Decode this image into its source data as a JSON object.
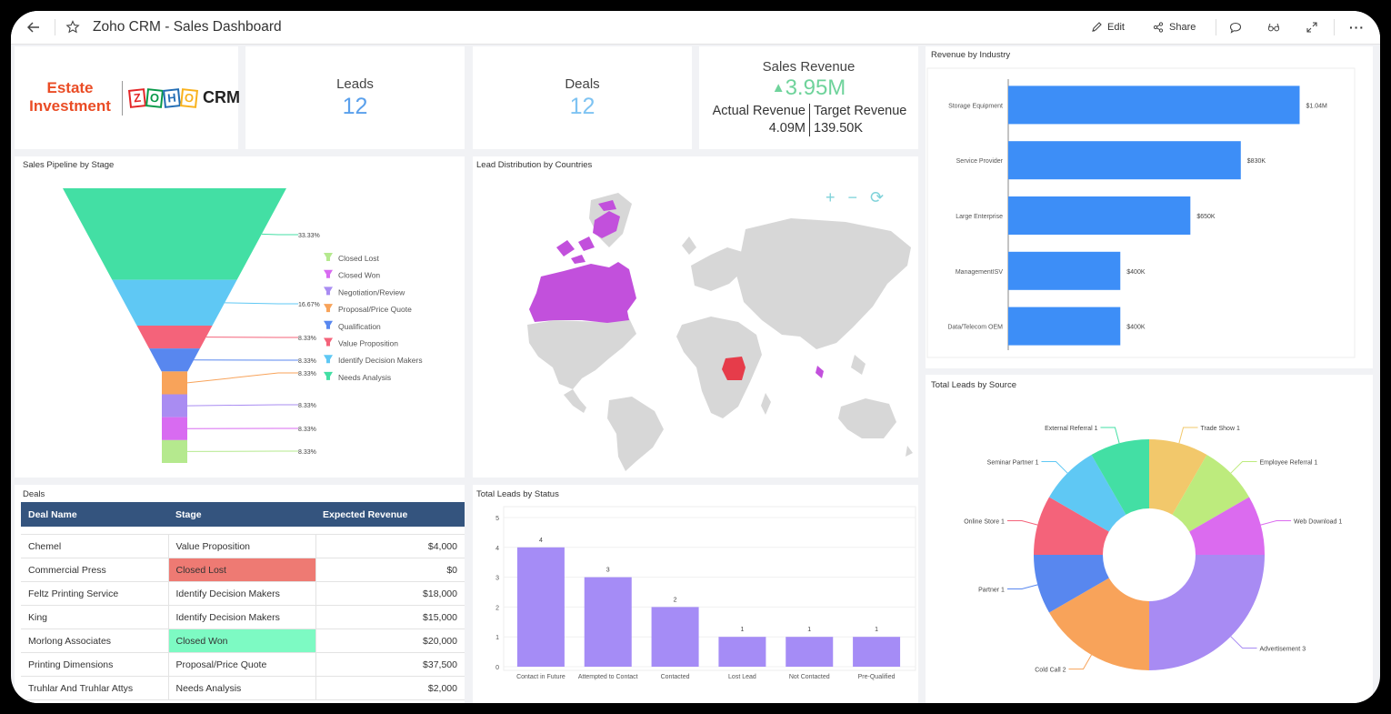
{
  "topbar": {
    "title": "Zoho CRM - Sales Dashboard",
    "edit_label": "Edit",
    "share_label": "Share",
    "more_label": "···"
  },
  "brand": {
    "line1": "Estate",
    "line2": "Investment",
    "logo_letters": [
      "Z",
      "O",
      "H",
      "O"
    ],
    "logo_colors": [
      "#e42527",
      "#089949",
      "#226db4",
      "#f9b21d"
    ],
    "crm_text": "CRM"
  },
  "kpis": {
    "leads_label": "Leads",
    "leads_value": "12",
    "deals_label": "Deals",
    "deals_value": "12",
    "revenue_label": "Sales Revenue",
    "revenue_arrow": "▲",
    "revenue_value": "3.95M",
    "actual_label": "Actual Revenue",
    "actual_value": "4.09M",
    "target_label": "Target Revenue",
    "target_value": "139.50K"
  },
  "colors": {
    "accent": "#64b5f6",
    "positive": "#4caf84",
    "bar_blue": "#3d8ef7",
    "bar_purple": "#a58cf6",
    "table_header": "#34547e",
    "closed_lost": "#ee7a73",
    "closed_won": "#7dfac3",
    "map_purple": "#c250dc",
    "map_red": "#e63c4a",
    "map_grey": "#d7d7d7"
  },
  "panels": {
    "pipeline_title": "Sales Pipeline by Stage",
    "map_title": "Lead Distribution by Countries",
    "industry_title": "Revenue by Industry",
    "deals_title": "Deals",
    "status_title": "Total Leads by Status",
    "source_title": "Total Leads by Source"
  },
  "map_controls": [
    "+",
    "−",
    "⟳"
  ],
  "funnel": {
    "legend": [
      {
        "label": "Closed Lost",
        "color": "#b5e98e"
      },
      {
        "label": "Closed Won",
        "color": "#d86bf1"
      },
      {
        "label": "Negotiation/Review",
        "color": "#a98cf2"
      },
      {
        "label": "Proposal/Price Quote",
        "color": "#f8a35a"
      },
      {
        "label": "Qualification",
        "color": "#5887ef"
      },
      {
        "label": "Value Proposition",
        "color": "#f4637a"
      },
      {
        "label": "Identify Decision Makers",
        "color": "#5fc8f4"
      },
      {
        "label": "Needs Analysis",
        "color": "#43dfa4"
      }
    ],
    "segments": [
      {
        "stage": "Needs Analysis",
        "pct": "33.33%",
        "share": 4,
        "color": "#43dfa4"
      },
      {
        "stage": "Identify Decision Makers",
        "pct": "16.67%",
        "share": 2,
        "color": "#5fc8f4"
      },
      {
        "stage": "Value Proposition",
        "pct": "8.33%",
        "share": 1,
        "color": "#f4637a"
      },
      {
        "stage": "Qualification",
        "pct": "8.33%",
        "share": 1,
        "color": "#5887ef"
      },
      {
        "stage": "Proposal/Price Quote",
        "pct": "8.33%",
        "share": 1,
        "color": "#f8a35a"
      },
      {
        "stage": "Negotiation/Review",
        "pct": "8.33%",
        "share": 1,
        "color": "#a98cf2"
      },
      {
        "stage": "Closed Won",
        "pct": "8.33%",
        "share": 1,
        "color": "#d86bf1"
      },
      {
        "stage": "Closed Lost",
        "pct": "8.33%",
        "share": 1,
        "color": "#b5e98e"
      }
    ]
  },
  "deals_table": {
    "headers": [
      "Deal Name",
      "Stage",
      "Expected Revenue"
    ],
    "rows": [
      {
        "name": "Chemel",
        "stage": "Value Proposition",
        "revenue": "$4,000",
        "highlight": ""
      },
      {
        "name": "Commercial Press",
        "stage": "Closed Lost",
        "revenue": "$0",
        "highlight": "#ee7a73"
      },
      {
        "name": "Feltz Printing Service",
        "stage": "Identify Decision Makers",
        "revenue": "$18,000",
        "highlight": ""
      },
      {
        "name": "King",
        "stage": "Identify Decision Makers",
        "revenue": "$15,000",
        "highlight": ""
      },
      {
        "name": "Morlong Associates",
        "stage": "Closed Won",
        "revenue": "$20,000",
        "highlight": "#7dfac3"
      },
      {
        "name": "Printing Dimensions",
        "stage": "Proposal/Price Quote",
        "revenue": "$37,500",
        "highlight": ""
      },
      {
        "name": "Truhlar And Truhlar Attys",
        "stage": "Needs Analysis",
        "revenue": "$2,000",
        "highlight": ""
      }
    ]
  },
  "chart_data": [
    {
      "type": "bar",
      "orientation": "horizontal",
      "title": "Revenue by Industry",
      "categories": [
        "Storage Equipment",
        "Service Provider",
        "Large Enterprise",
        "ManagementISV",
        "Data/Telecom OEM"
      ],
      "values": [
        1040000,
        830000,
        650000,
        400000,
        400000
      ],
      "data_labels": [
        "$1.04M",
        "$830K",
        "$650K",
        "$400K",
        "$400K"
      ],
      "xlim": [
        0,
        1100000
      ],
      "grid": false
    },
    {
      "type": "bar",
      "title": "Total Leads by Status",
      "categories": [
        "Contact in Future",
        "Attempted to Contact",
        "Contacted",
        "Lost Lead",
        "Not Contacted",
        "Pre-Qualified"
      ],
      "values": [
        4,
        3,
        2,
        1,
        1,
        1
      ],
      "ylim": [
        0,
        5
      ],
      "yticks": [
        "0",
        "1",
        "2",
        "3",
        "4",
        "5"
      ],
      "grid": true
    },
    {
      "type": "pie",
      "title": "Total Leads by Source",
      "donut": true,
      "slices": [
        {
          "label": "Trade Show 1",
          "value": 1,
          "color": "#f2c86b"
        },
        {
          "label": "Employee Referral 1",
          "value": 1,
          "color": "#bdeb7d"
        },
        {
          "label": "Web Download 1",
          "value": 1,
          "color": "#db6bef"
        },
        {
          "label": "Advertisement 3",
          "value": 3,
          "color": "#a88bf3"
        },
        {
          "label": "Cold Call 2",
          "value": 2,
          "color": "#f8a35a"
        },
        {
          "label": "Partner 1",
          "value": 1,
          "color": "#5887ef"
        },
        {
          "label": "Online Store 1",
          "value": 1,
          "color": "#f4637a"
        },
        {
          "label": "Seminar Partner 1",
          "value": 1,
          "color": "#5fc8f4"
        },
        {
          "label": "External Referral 1",
          "value": 1,
          "color": "#43dfa4"
        }
      ]
    }
  ]
}
